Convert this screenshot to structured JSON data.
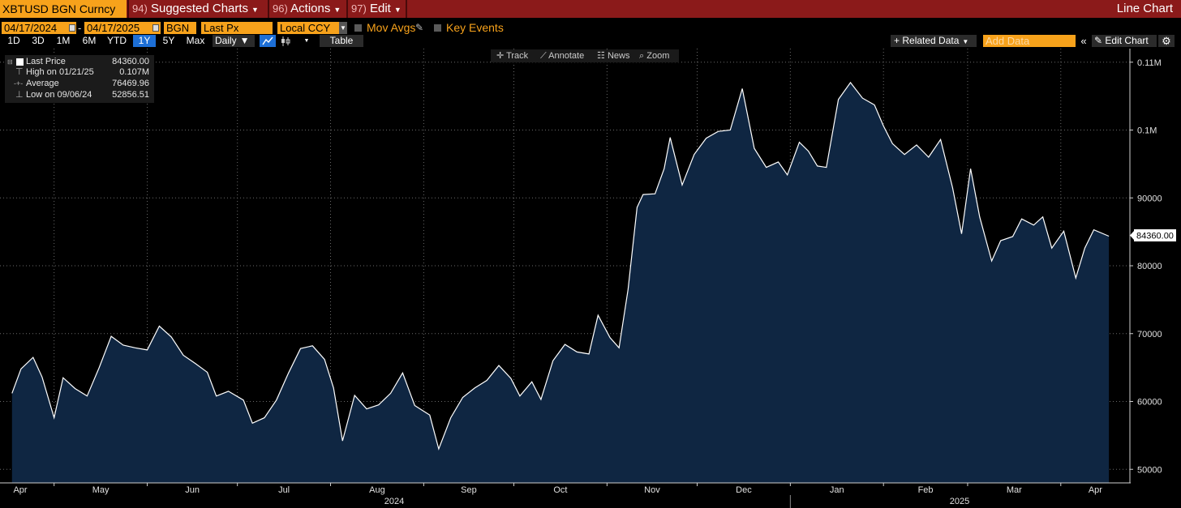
{
  "toolbar": {
    "ticker": "XBTUSD BGN Curncy",
    "menu": [
      {
        "num": "94)",
        "label": "Suggested Charts"
      },
      {
        "num": "96)",
        "label": "Actions"
      },
      {
        "num": "97)",
        "label": "Edit"
      }
    ],
    "chart_type": "Line Chart"
  },
  "settings": {
    "start_date": "04/17/2024",
    "end_date": "04/17/2025",
    "date_sep": "-",
    "source": "BGN",
    "field": "Last Px",
    "currency": "Local CCY",
    "mov_avgs": "Mov Avgs",
    "key_events": "Key Events"
  },
  "periods": [
    "1D",
    "3D",
    "1M",
    "6M",
    "YTD",
    "1Y",
    "5Y",
    "Max"
  ],
  "selected_period": "1Y",
  "frequency": "Daily",
  "table_label": "Table",
  "related_data": "Related Data",
  "add_data_placeholder": "Add Data",
  "edit_chart": "Edit Chart",
  "tools": [
    "Track",
    "Annotate",
    "News",
    "Zoom"
  ],
  "legend": [
    {
      "label": "Last Price",
      "value": "84360.00"
    },
    {
      "label": "High on 01/21/25",
      "value": "0.107M"
    },
    {
      "label": "Average",
      "value": "76469.96"
    },
    {
      "label": "Low on 09/06/24",
      "value": "52856.51"
    }
  ],
  "colors": {
    "line": "#ffffff",
    "fill": "#0f2642",
    "accent": "#f7a21b",
    "topbar": "#8b1a1a",
    "selected": "#1d6fd6"
  },
  "chart_data": {
    "type": "area",
    "title": "XBTUSD BGN Curncy",
    "xlabel": "",
    "ylabel": "",
    "last_value_label": "84360.00",
    "y_ticks": [
      "50000",
      "60000",
      "70000",
      "80000",
      "90000",
      "0.1M",
      "0.11M"
    ],
    "ylim": [
      48000,
      112000
    ],
    "x_ticks": [
      "Apr",
      "May",
      "Jun",
      "Jul",
      "Aug",
      "Sep",
      "Oct",
      "Nov",
      "Dec",
      "Jan",
      "Feb",
      "Mar",
      "Apr"
    ],
    "x_years": [
      "2024",
      "2025"
    ],
    "grid": true,
    "series": [
      {
        "name": "Last Price",
        "points": [
          [
            "2024-04-17",
            61200
          ],
          [
            "2024-04-20",
            64800
          ],
          [
            "2024-04-24",
            66500
          ],
          [
            "2024-04-27",
            63600
          ],
          [
            "2024-05-01",
            57600
          ],
          [
            "2024-05-04",
            63500
          ],
          [
            "2024-05-08",
            61900
          ],
          [
            "2024-05-12",
            60800
          ],
          [
            "2024-05-16",
            65000
          ],
          [
            "2024-05-20",
            69600
          ],
          [
            "2024-05-24",
            68300
          ],
          [
            "2024-05-28",
            67900
          ],
          [
            "2024-06-01",
            67600
          ],
          [
            "2024-06-05",
            71100
          ],
          [
            "2024-06-09",
            69500
          ],
          [
            "2024-06-13",
            66800
          ],
          [
            "2024-06-17",
            65600
          ],
          [
            "2024-06-21",
            64300
          ],
          [
            "2024-06-24",
            60800
          ],
          [
            "2024-06-28",
            61500
          ],
          [
            "2024-07-03",
            60200
          ],
          [
            "2024-07-06",
            56800
          ],
          [
            "2024-07-10",
            57600
          ],
          [
            "2024-07-14",
            60200
          ],
          [
            "2024-07-18",
            64200
          ],
          [
            "2024-07-22",
            67800
          ],
          [
            "2024-07-26",
            68200
          ],
          [
            "2024-07-30",
            66200
          ],
          [
            "2024-08-02",
            62000
          ],
          [
            "2024-08-05",
            54200
          ],
          [
            "2024-08-09",
            60900
          ],
          [
            "2024-08-13",
            58900
          ],
          [
            "2024-08-17",
            59500
          ],
          [
            "2024-08-21",
            61200
          ],
          [
            "2024-08-25",
            64200
          ],
          [
            "2024-08-29",
            59400
          ],
          [
            "2024-09-03",
            58000
          ],
          [
            "2024-09-06",
            53000
          ],
          [
            "2024-09-10",
            57600
          ],
          [
            "2024-09-14",
            60600
          ],
          [
            "2024-09-18",
            62000
          ],
          [
            "2024-09-22",
            63100
          ],
          [
            "2024-09-26",
            65300
          ],
          [
            "2024-09-30",
            63400
          ],
          [
            "2024-10-03",
            60800
          ],
          [
            "2024-10-07",
            62900
          ],
          [
            "2024-10-10",
            60300
          ],
          [
            "2024-10-14",
            66000
          ],
          [
            "2024-10-18",
            68400
          ],
          [
            "2024-10-22",
            67300
          ],
          [
            "2024-10-26",
            67000
          ],
          [
            "2024-10-29",
            72700
          ],
          [
            "2024-11-02",
            69400
          ],
          [
            "2024-11-05",
            67900
          ],
          [
            "2024-11-08",
            76500
          ],
          [
            "2024-11-11",
            88600
          ],
          [
            "2024-11-13",
            90500
          ],
          [
            "2024-11-17",
            90600
          ],
          [
            "2024-11-20",
            94300
          ],
          [
            "2024-11-22",
            98900
          ],
          [
            "2024-11-26",
            91900
          ],
          [
            "2024-11-30",
            96400
          ],
          [
            "2024-12-04",
            98800
          ],
          [
            "2024-12-08",
            99800
          ],
          [
            "2024-12-12",
            100000
          ],
          [
            "2024-12-16",
            106100
          ],
          [
            "2024-12-20",
            97300
          ],
          [
            "2024-12-24",
            94500
          ],
          [
            "2024-12-28",
            95300
          ],
          [
            "2024-12-31",
            93400
          ],
          [
            "2025-01-04",
            98200
          ],
          [
            "2025-01-07",
            96900
          ],
          [
            "2025-01-10",
            94700
          ],
          [
            "2025-01-13",
            94500
          ],
          [
            "2025-01-17",
            104500
          ],
          [
            "2025-01-21",
            107000
          ],
          [
            "2025-01-25",
            104700
          ],
          [
            "2025-01-29",
            103700
          ],
          [
            "2025-02-01",
            100600
          ],
          [
            "2025-02-04",
            98000
          ],
          [
            "2025-02-08",
            96400
          ],
          [
            "2025-02-12",
            97800
          ],
          [
            "2025-02-16",
            96000
          ],
          [
            "2025-02-20",
            98600
          ],
          [
            "2025-02-24",
            91500
          ],
          [
            "2025-02-27",
            84700
          ],
          [
            "2025-03-02",
            94300
          ],
          [
            "2025-03-05",
            87200
          ],
          [
            "2025-03-09",
            80700
          ],
          [
            "2025-03-12",
            83700
          ],
          [
            "2025-03-16",
            84300
          ],
          [
            "2025-03-19",
            86900
          ],
          [
            "2025-03-23",
            86000
          ],
          [
            "2025-03-26",
            87200
          ],
          [
            "2025-03-29",
            82600
          ],
          [
            "2025-04-02",
            85100
          ],
          [
            "2025-04-06",
            78200
          ],
          [
            "2025-04-09",
            82600
          ],
          [
            "2025-04-12",
            85300
          ],
          [
            "2025-04-17",
            84360
          ]
        ]
      }
    ]
  }
}
